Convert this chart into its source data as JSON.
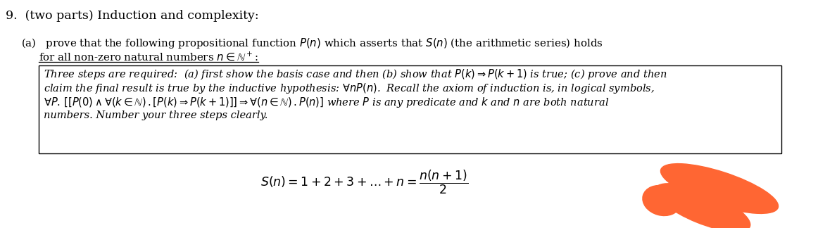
{
  "bg_color": "#ffffff",
  "title": "9.  (two parts) Induction and complexity:",
  "part_a_line1": "(a)   prove that the following propositional function $P(n)$ which asserts that $S(n)$ (the arithmetic series) holds",
  "part_a_line2": "for all non-zero natural numbers $n \\in \\mathbb{N}^+$:",
  "box_l1": "Three steps are required:  (a) first show the basis case and then (b) show that $P(k) \\Rightarrow P(k+1)$ is true; (c) prove and then",
  "box_l2": "claim the final result is true by the inductive hypothesis: $\\forall nP(n)$.  Recall the axiom of induction is, in logical symbols,",
  "box_l3": "$\\forall P.\\, [[P(0) \\wedge \\forall(k \\in \\mathbb{N})\\,.[P(k) \\Rightarrow P(k+1)]] \\Rightarrow \\forall(n \\in \\mathbb{N})\\,.P(n)]$ where $P$ is any predicate and $k$ and $n$ are both natural",
  "box_l4": "numbers. Number your three steps clearly.",
  "formula": "$S(n) = 1 + 2 + 3 + \\ldots + n = \\dfrac{n(n+1)}{2}$",
  "blob_color": "#FF6633",
  "fig_w": 11.62,
  "fig_h": 3.24,
  "dpi": 100
}
